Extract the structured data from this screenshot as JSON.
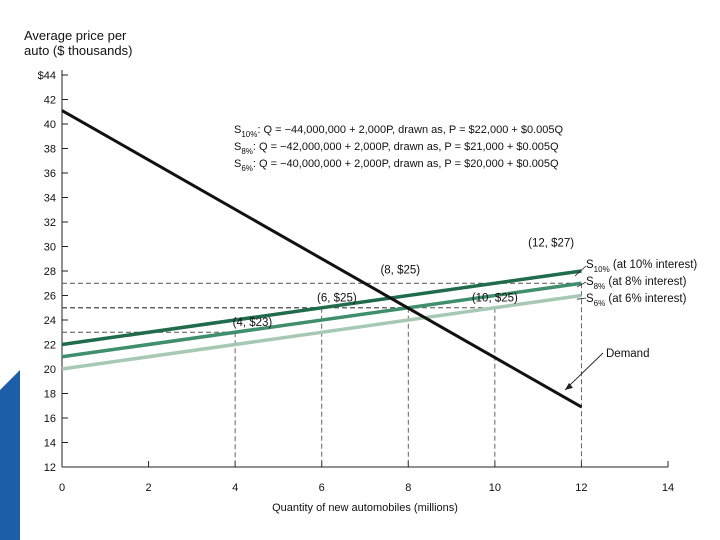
{
  "chart_data": {
    "type": "line",
    "ylabel_lines": [
      "Average price per",
      "auto ($ thousands)"
    ],
    "xlabel": "Quantity of new automobiles (millions)",
    "xlim": [
      0,
      14
    ],
    "ylim": [
      12,
      44
    ],
    "x_ticks": [
      "0",
      "2",
      "4",
      "6",
      "8",
      "10",
      "12",
      "14"
    ],
    "y_ticks": [
      "12",
      "14",
      "16",
      "18",
      "20",
      "22",
      "24",
      "26",
      "28",
      "30",
      "32",
      "34",
      "36",
      "38",
      "40",
      "42",
      "$44"
    ],
    "series": [
      {
        "name": "Demand",
        "color": "#111111",
        "x": [
          0,
          12
        ],
        "y": [
          41.1,
          16.9
        ]
      },
      {
        "name": "S10% (at 10% interest)",
        "color": "#1f6b4c",
        "x": [
          0,
          12
        ],
        "y": [
          22,
          28
        ]
      },
      {
        "name": "S8% (at 8% interest)",
        "color": "#3f8e6c",
        "x": [
          0,
          12
        ],
        "y": [
          21,
          27
        ]
      },
      {
        "name": "S6% (at 6% interest)",
        "color": "#a7c9b4",
        "x": [
          0,
          12
        ],
        "y": [
          20,
          26
        ]
      }
    ],
    "reference_lines": [
      {
        "x": 4,
        "y": 23
      },
      {
        "x": 6,
        "y": 25
      },
      {
        "x": 8,
        "y": 25
      },
      {
        "x": 10,
        "y": 25
      },
      {
        "x": 12,
        "y": 27
      }
    ],
    "point_labels": [
      {
        "text": "(8, $25)",
        "x": 8,
        "y": 25
      },
      {
        "text": "(12, $27)",
        "x": 12,
        "y": 27
      },
      {
        "text": "(6, $25)",
        "x": 6,
        "y": 25
      },
      {
        "text": "(10, $25)",
        "x": 10,
        "y": 25
      },
      {
        "text": "(4, $23)",
        "x": 4,
        "y": 23
      }
    ],
    "curve_labels": [
      {
        "sub": "10%",
        "text": "(at 10% interest)"
      },
      {
        "sub": "8%",
        "text": "(at 8% interest)"
      },
      {
        "sub": "6%",
        "text": "(at 6% interest)"
      }
    ],
    "demand_label": "Demand",
    "equations": [
      {
        "sub": "10%",
        "text": ": Q = −44,000,000 + 2,000P, drawn as, P = $22,000 + $0.005Q"
      },
      {
        "sub": "8%",
        "text": ": Q = −42,000,000 + 2,000P, drawn as, P = $21,000 + $0.005Q"
      },
      {
        "sub": "6%",
        "text": ": Q = −40,000,000 + 2,000P, drawn as, P = $20,000 + $0.005Q"
      }
    ],
    "grid": false,
    "legend": "inline labels right of curves"
  },
  "colors": {
    "slide_accent": "#1d5ea8",
    "axis": "#222222"
  }
}
